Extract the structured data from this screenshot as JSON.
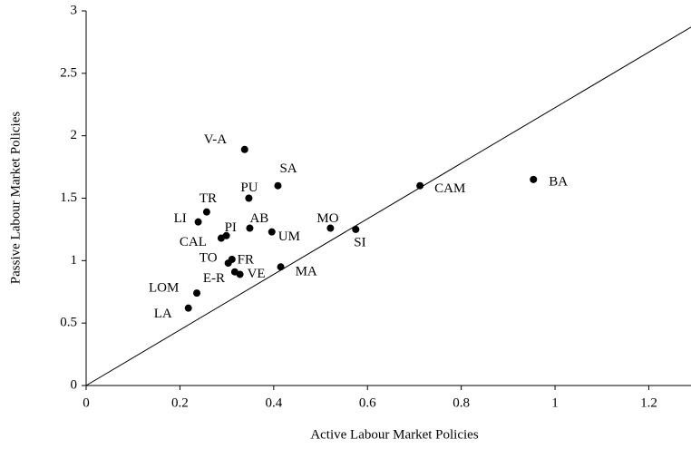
{
  "chart_data": {
    "type": "scatter",
    "xlabel": "Active Labour Market Policies",
    "ylabel": "Passive Labour Market Policies",
    "series": [
      {
        "color": "#000000",
        "labels": [
          "V-A",
          "SA",
          "PU",
          "TR",
          "LI",
          "PI",
          "CAL",
          "AB",
          "UM",
          "MO",
          "SI",
          "CAM",
          "BA",
          "TO",
          "FR",
          "E-R",
          "VE",
          "MA",
          "LOM",
          "LA"
        ],
        "x": [
          0.338,
          0.409,
          0.347,
          0.257,
          0.239,
          0.299,
          0.288,
          0.349,
          0.396,
          0.521,
          0.575,
          0.712,
          0.954,
          0.311,
          0.303,
          0.317,
          0.328,
          0.415,
          0.236,
          0.218
        ],
        "values": [
          1.89,
          1.6,
          1.5,
          1.39,
          1.31,
          1.2,
          1.18,
          1.26,
          1.23,
          1.26,
          1.25,
          1.6,
          1.65,
          1.01,
          0.98,
          0.91,
          0.89,
          0.95,
          0.74,
          0.62
        ]
      }
    ],
    "reference_line": {
      "x": [
        0,
        1.29
      ],
      "y": [
        0,
        2.87
      ]
    },
    "xlim": [
      0,
      1.29
    ],
    "ylim": [
      0,
      3
    ],
    "xticks": [
      0,
      0.2,
      0.4,
      0.6,
      0.8,
      1,
      1.2
    ],
    "yticks": [
      0,
      0.5,
      1,
      1.5,
      2,
      2.5,
      3
    ]
  }
}
